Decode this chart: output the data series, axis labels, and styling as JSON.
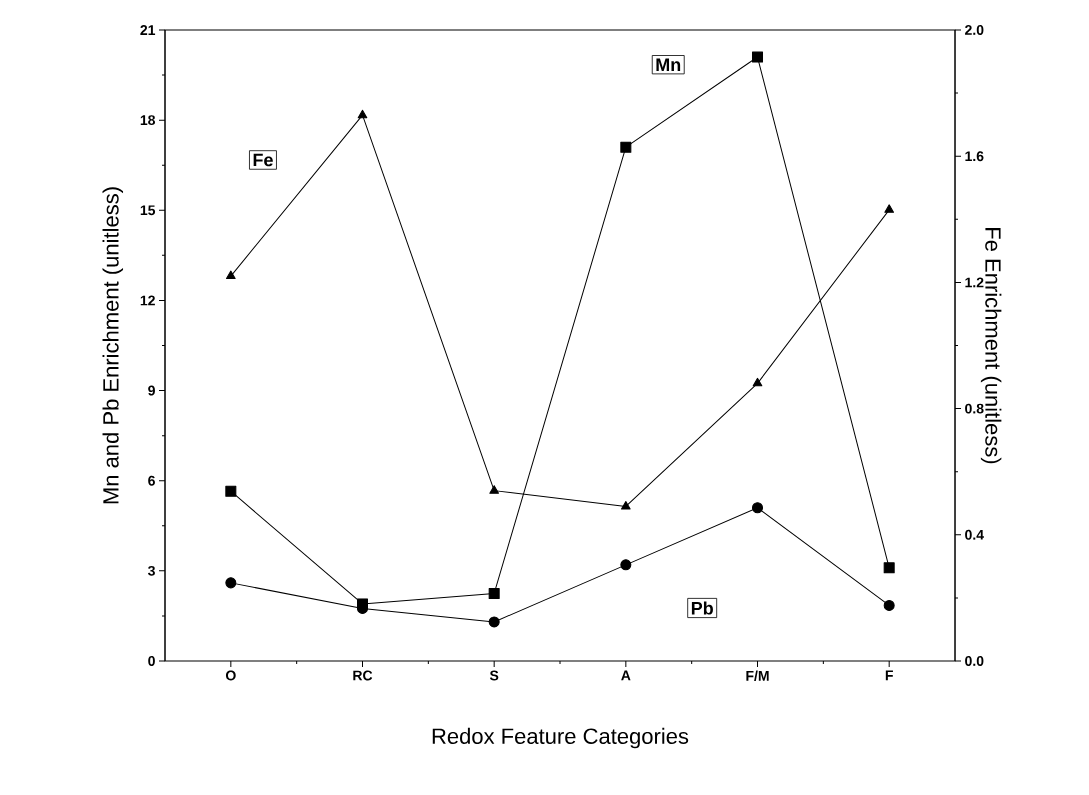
{
  "chart_data": {
    "type": "line",
    "xlabel": "Redox Feature Categories",
    "ylabel": "Mn and Pb Enrichment (unitless)",
    "y2label": "Fe Enrichment (unitless)",
    "categories": [
      "O",
      "RC",
      "S",
      "A",
      "F/M",
      "F"
    ],
    "series": [
      {
        "name": "Mn",
        "color": "#000000",
        "marker": "square",
        "values": [
          5.65,
          1.9,
          2.25,
          17.1,
          20.1,
          3.1
        ]
      },
      {
        "name": "Pb",
        "color": "#000000",
        "marker": "circle",
        "values": [
          2.6,
          1.75,
          1.3,
          3.2,
          5.1,
          1.85
        ]
      },
      {
        "name": "Fe",
        "color": "#000000",
        "marker": "triangle",
        "axis": "y2",
        "values": [
          1.22,
          1.73,
          0.54,
          0.49,
          0.88,
          1.43
        ]
      }
    ],
    "ylim": [
      0,
      21
    ],
    "yticks": [
      0,
      3,
      6,
      9,
      12,
      15,
      18,
      21
    ],
    "y2lim": [
      0,
      2.0
    ],
    "y2ticks": [
      {
        "value": 0,
        "label": "0.0"
      },
      {
        "value": 0.4,
        "label": "0.4"
      },
      {
        "value": 0.8,
        "label": "0.8"
      },
      {
        "value": 1.2,
        "label": "1.2"
      },
      {
        "value": 1.6,
        "label": "1.6"
      },
      {
        "value": 2.0,
        "label": "2.0"
      }
    ],
    "line_style": "solid"
  }
}
